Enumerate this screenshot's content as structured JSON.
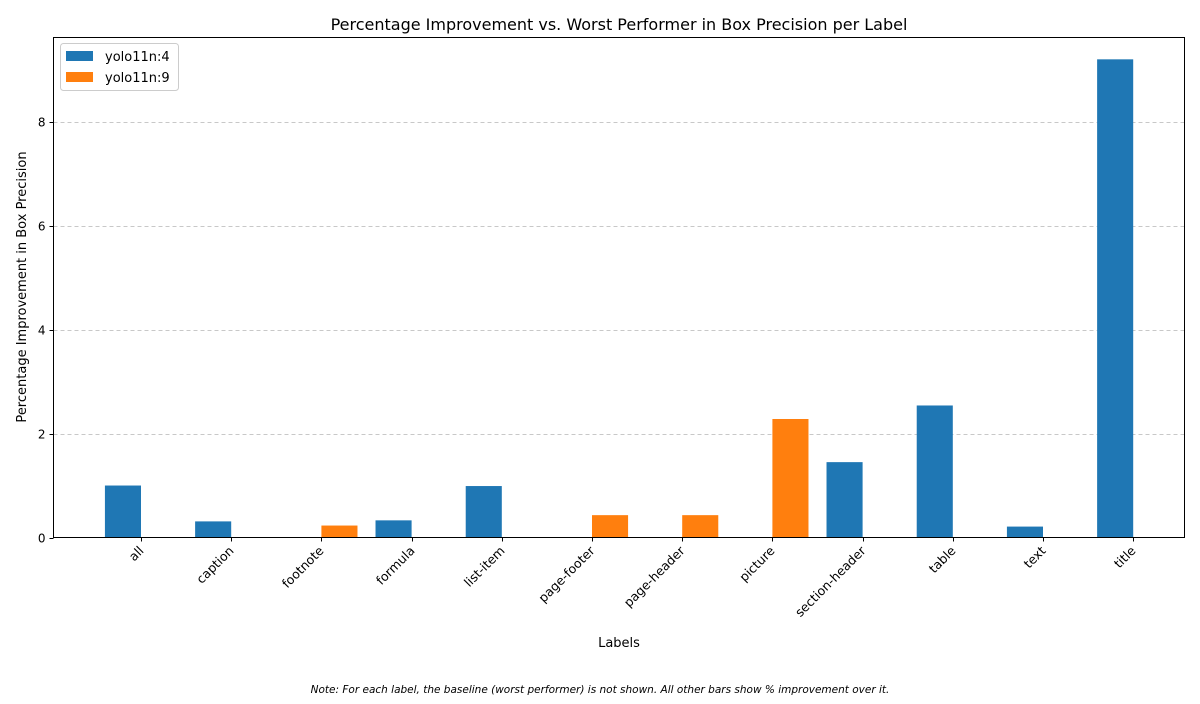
{
  "chart_data": {
    "type": "bar",
    "title": "Percentage Improvement vs. Worst Performer in Box Precision per Label",
    "xlabel": "Labels",
    "ylabel": "Percentage Improvement in Box Precision",
    "note": "Note: For each label, the baseline (worst performer) is not shown. All other bars show % improvement over it.",
    "categories": [
      "all",
      "caption",
      "footnote",
      "formula",
      "list-item",
      "page-footer",
      "page-header",
      "picture",
      "section-header",
      "table",
      "text",
      "title"
    ],
    "series": [
      {
        "name": "yolo11n:4",
        "color": "#1f77b4",
        "values": [
          1.0,
          0.31,
          null,
          0.33,
          0.99,
          null,
          null,
          null,
          1.45,
          2.54,
          0.21,
          9.2
        ]
      },
      {
        "name": "yolo11n:9",
        "color": "#ff7f0e",
        "values": [
          null,
          null,
          0.23,
          null,
          null,
          0.43,
          0.43,
          2.28,
          null,
          null,
          null,
          null
        ]
      }
    ],
    "ylim": [
      0,
      9.62
    ],
    "yticks": [
      0,
      2,
      4,
      6,
      8
    ],
    "grid": "y dashed",
    "legend": "top-left"
  }
}
